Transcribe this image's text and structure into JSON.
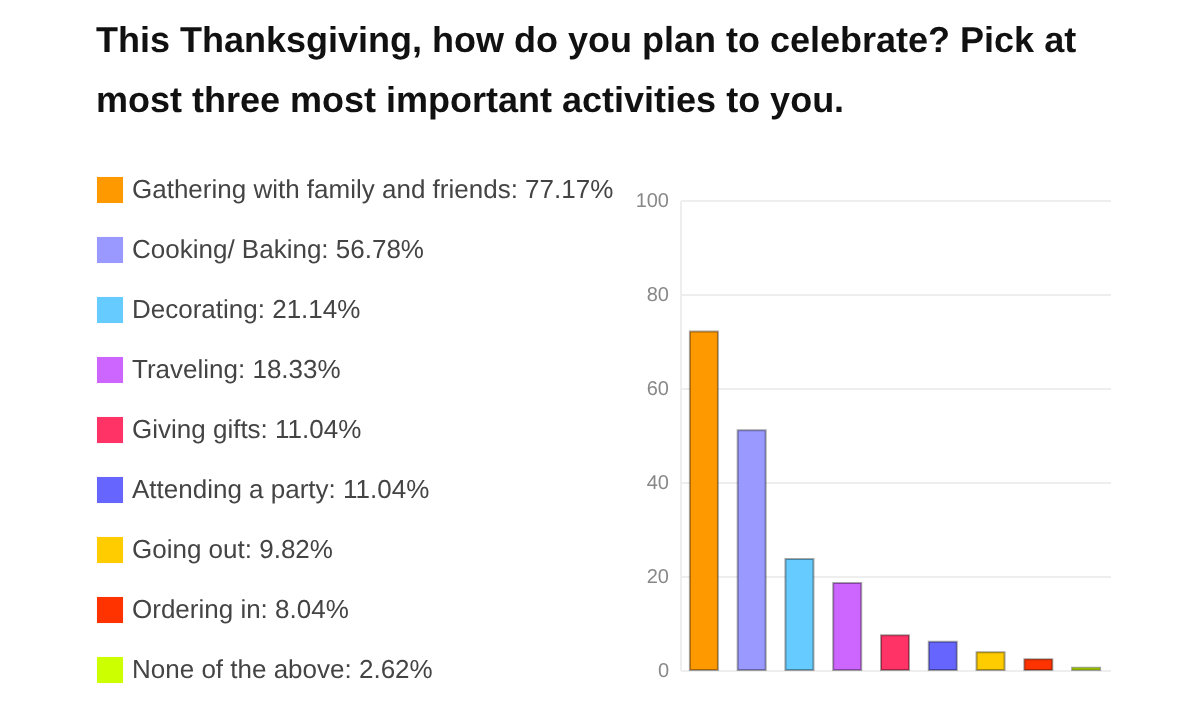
{
  "chart_data": {
    "type": "bar",
    "title": "This Thanksgiving, how do you plan to celebrate? Pick at most three most important activities to you.",
    "categories": [
      null,
      null,
      null,
      null,
      null,
      null,
      null,
      null,
      null
    ],
    "series": [
      {
        "name": "Gathering with family and friends: 77.17%",
        "color": "#ff9900",
        "values": [
          72,
          null,
          null,
          null,
          null,
          null,
          null,
          null,
          null
        ]
      },
      {
        "name": "Cooking/ Baking: 56.78%",
        "color": "#9999ff",
        "values": [
          null,
          51,
          null,
          null,
          null,
          null,
          null,
          null,
          null
        ]
      },
      {
        "name": "Decorating: 21.14%",
        "color": "#66ccff",
        "values": [
          null,
          null,
          23.6,
          null,
          null,
          null,
          null,
          null,
          null
        ]
      },
      {
        "name": "Traveling: 18.33%",
        "color": "#cc66ff",
        "values": [
          null,
          null,
          null,
          18.5,
          null,
          null,
          null,
          null,
          null
        ]
      },
      {
        "name": "Giving gifts: 11.04%",
        "color": "#ff3366",
        "values": [
          null,
          null,
          null,
          null,
          7.4,
          null,
          null,
          null,
          null
        ]
      },
      {
        "name": "Attending a party: 11.04%",
        "color": "#6666ff",
        "values": [
          null,
          null,
          null,
          null,
          null,
          6,
          null,
          null,
          null
        ]
      },
      {
        "name": "Going out: 9.82%",
        "color": "#ffcc00",
        "values": [
          null,
          null,
          null,
          null,
          null,
          null,
          3.8,
          null,
          null
        ]
      },
      {
        "name": "Ordering in: 8.04%",
        "color": "#ff3300",
        "values": [
          null,
          null,
          null,
          null,
          null,
          null,
          null,
          2.3,
          null
        ]
      },
      {
        "name": "None of the above: 2.62%",
        "color": "#ccff00",
        "values": [
          null,
          null,
          null,
          null,
          null,
          null,
          null,
          null,
          0.5
        ]
      }
    ],
    "ylim": [
      0,
      100
    ],
    "yticks": [
      0,
      20,
      40,
      60,
      80,
      100
    ],
    "grid": "y",
    "legend": "left"
  }
}
